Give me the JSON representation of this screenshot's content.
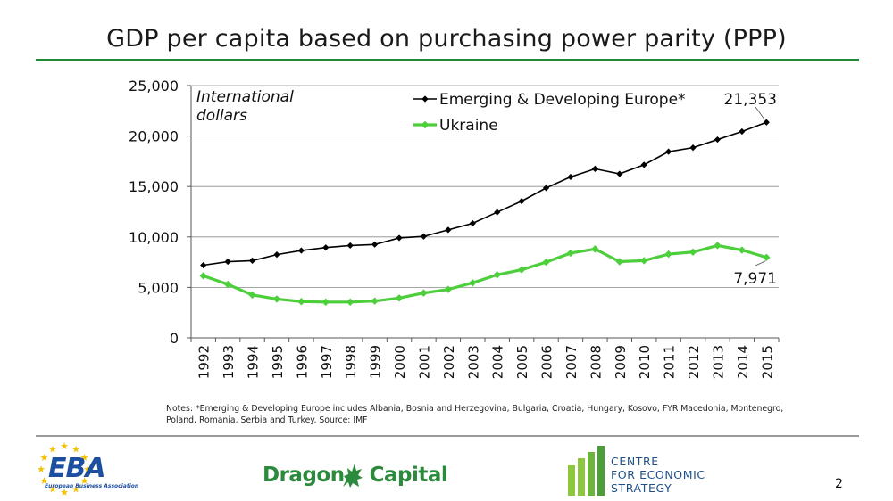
{
  "title": "GDP per capita based on purchasing power parity (PPP)",
  "chart_data": {
    "type": "line",
    "unit_label": "International dollars",
    "categories": [
      "1992",
      "1993",
      "1994",
      "1995",
      "1996",
      "1997",
      "1998",
      "1999",
      "2000",
      "2001",
      "2002",
      "2003",
      "2004",
      "2005",
      "2006",
      "2007",
      "2008",
      "2009",
      "2010",
      "2011",
      "2012",
      "2013",
      "2014",
      "2015"
    ],
    "series": [
      {
        "name": "Emerging & Developing Europe*",
        "color": "#000000",
        "values": [
          7200,
          7550,
          7650,
          8250,
          8650,
          8950,
          9150,
          9250,
          9900,
          10050,
          10700,
          11350,
          12450,
          13550,
          14850,
          15950,
          16750,
          16250,
          17150,
          18450,
          18850,
          19650,
          20450,
          21353
        ],
        "end_label": "21,353"
      },
      {
        "name": "Ukraine",
        "color": "#4ccf3b",
        "values": [
          6150,
          5300,
          4250,
          3850,
          3600,
          3550,
          3550,
          3650,
          3950,
          4450,
          4800,
          5450,
          6250,
          6750,
          7500,
          8400,
          8800,
          7550,
          7650,
          8300,
          8500,
          9150,
          8700,
          7971
        ],
        "end_label": "7,971"
      }
    ],
    "ylim": [
      0,
      25000
    ],
    "yticks": [
      0,
      5000,
      10000,
      15000,
      20000,
      25000
    ],
    "ytick_labels": [
      "0",
      "5,000",
      "10,000",
      "15,000",
      "20,000",
      "25,000"
    ],
    "grid": true,
    "legend_position": "top-center"
  },
  "notes": "Notes: *Emerging & Developing Europe includes Albania, Bosnia and Herzegovina, Bulgaria, Croatia, Hungary, Kosovo, FYR Macedonia, Montenegro, Poland, Romania, Serbia and Turkey. Source: IMF",
  "logos": {
    "eba": "EBA",
    "eba_sub": "European Business Association",
    "dragon_left": "Dragon",
    "dragon_right": "Capital",
    "ces_lines": [
      "CENTRE",
      "FOR ECONOMIC",
      "STRATEGY"
    ]
  },
  "page_number": "2",
  "colors": {
    "accent": "#1e8a35",
    "eba_blue": "#1d4fa0",
    "ces_blue": "#1e4f86",
    "ukraine": "#4ccf3b"
  }
}
